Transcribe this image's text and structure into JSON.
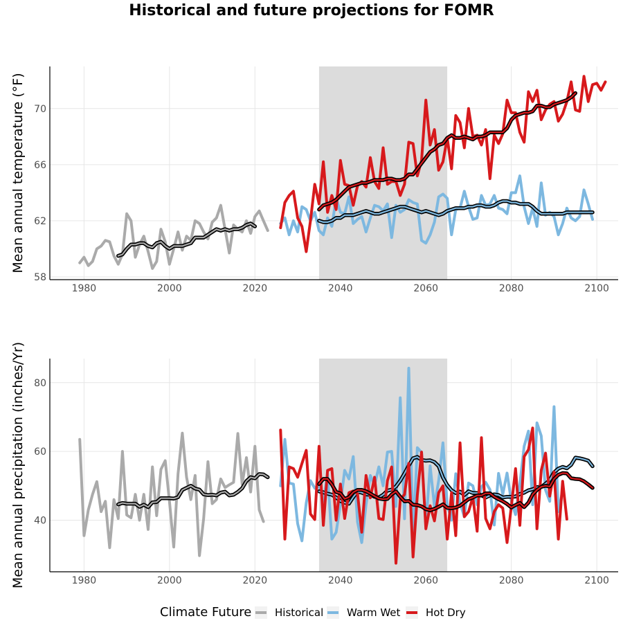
{
  "chart_data": {
    "title": "Historical and future projections for FOMR",
    "type": "line",
    "legend": {
      "title": "Climate Future",
      "position": "bottom",
      "entries": [
        {
          "name": "Historical",
          "color": "#aaaaaa"
        },
        {
          "name": "Warm Wet",
          "color": "#7db8e0"
        },
        {
          "name": "Hot Dry",
          "color": "#d7191c"
        }
      ]
    },
    "shaded_period": [
      2035,
      2065
    ],
    "grid": true,
    "panels": [
      {
        "ylabel": "Mean annual temperature (°F)",
        "xlim": [
          1972,
          2105
        ],
        "ylim": [
          57.8,
          73
        ],
        "xticks": [
          1980,
          2000,
          2020,
          2040,
          2060,
          2080,
          2100
        ],
        "yticks": [
          58,
          62,
          66,
          70
        ],
        "series": [
          {
            "name": "Historical",
            "color": "#aaaaaa",
            "x_start": 1979,
            "values": [
              59.0,
              59.4,
              58.8,
              59.1,
              60.0,
              60.2,
              60.6,
              60.5,
              59.5,
              58.9,
              59.6,
              62.5,
              62.0,
              59.4,
              60.3,
              60.9,
              59.8,
              58.6,
              59.1,
              61.4,
              60.5,
              58.9,
              60.0,
              61.2,
              59.9,
              60.9,
              60.6,
              62.0,
              61.8,
              61.2,
              60.7,
              61.9,
              62.2,
              63.1,
              61.4,
              59.7,
              61.7,
              61.4,
              61.2,
              62.0,
              61.1,
              62.3,
              62.7,
              62.0,
              61.3
            ]
          },
          {
            "name": "Historical MA",
            "color": "#000000",
            "smooth": true,
            "x_start": 1988,
            "values": [
              59.5,
              59.6,
              60.0,
              60.3,
              60.3,
              60.4,
              60.4,
              60.2,
              60.1,
              60.4,
              60.5,
              60.2,
              60.0,
              60.2,
              60.2,
              60.2,
              60.3,
              60.4,
              60.8,
              60.8,
              60.8,
              61.0,
              61.2,
              61.4,
              61.3,
              61.4,
              61.3,
              61.4,
              61.4,
              61.5,
              61.7,
              61.8,
              61.6
            ]
          },
          {
            "name": "Warm Wet",
            "color": "#7db8e0",
            "x_start": 2026,
            "values": [
              61.8,
              62.2,
              61.0,
              62.0,
              61.2,
              63.0,
              62.8,
              62.0,
              62.6,
              61.3,
              61.0,
              62.2,
              61.6,
              63.6,
              62.6,
              62.5,
              63.7,
              61.8,
              62.1,
              62.3,
              61.2,
              62.2,
              63.1,
              63.0,
              62.7,
              63.2,
              60.8,
              63.1,
              62.6,
              62.8,
              63.5,
              63.3,
              63.2,
              60.6,
              60.4,
              61.0,
              61.9,
              63.7,
              63.9,
              63.6,
              61.0,
              62.8,
              62.9,
              64.1,
              63.0,
              62.1,
              62.2,
              63.8,
              63.1,
              63.2,
              63.8,
              62.9,
              62.8,
              62.5,
              64.0,
              64.0,
              65.2,
              63.0,
              61.8,
              62.9,
              61.6,
              64.7,
              62.4,
              62.6,
              62.3,
              61.0,
              61.8,
              62.9,
              62.2,
              62.0,
              62.3,
              64.2,
              63.2,
              62.1
            ]
          },
          {
            "name": "Warm Wet MA",
            "color": "#000000",
            "smooth": true,
            "x_start": 2035,
            "values": [
              62.0,
              61.9,
              61.9,
              62.0,
              62.2,
              62.2,
              62.4,
              62.4,
              62.4,
              62.5,
              62.6,
              62.7,
              62.6,
              62.5,
              62.5,
              62.6,
              62.7,
              62.8,
              62.9,
              63.0,
              63.0,
              62.9,
              62.8,
              62.7,
              62.6,
              62.7,
              62.6,
              62.5,
              62.4,
              62.5,
              62.7,
              62.8,
              62.9,
              62.9,
              62.9,
              63.0,
              63.0,
              63.1,
              63.1,
              63.0,
              63.0,
              63.1,
              63.3,
              63.4,
              63.4,
              63.3,
              63.3,
              63.2,
              63.2,
              63.2,
              63.0,
              62.7,
              62.5,
              62.5,
              62.5,
              62.5,
              62.5,
              62.5,
              62.6,
              62.6,
              62.6,
              62.6,
              62.6,
              62.6,
              62.6
            ]
          },
          {
            "name": "Hot Dry",
            "color": "#d7191c",
            "x_start": 2026,
            "values": [
              61.5,
              63.3,
              63.8,
              64.1,
              62.2,
              61.6,
              59.8,
              62.0,
              64.6,
              63.2,
              66.2,
              62.6,
              63.8,
              62.8,
              66.3,
              64.6,
              64.5,
              63.1,
              64.5,
              64.8,
              64.4,
              66.5,
              64.8,
              64.3,
              67.2,
              64.6,
              64.8,
              64.8,
              63.8,
              64.6,
              67.6,
              67.5,
              65.2,
              66.3,
              70.6,
              67.4,
              68.5,
              65.6,
              66.2,
              67.9,
              65.7,
              69.5,
              69.0,
              67.2,
              70.0,
              68.0,
              68.1,
              67.4,
              68.5,
              65.0,
              68.1,
              67.5,
              68.2,
              70.6,
              69.7,
              69.7,
              68.3,
              67.6,
              71.2,
              70.5,
              71.3,
              69.2,
              69.9,
              70.3,
              70.5,
              69.1,
              69.6,
              70.5,
              71.9,
              69.9,
              69.8,
              72.3,
              70.5,
              71.7,
              71.8,
              71.3,
              71.9
            ]
          },
          {
            "name": "Hot Dry MA",
            "color": "#000000",
            "smooth": true,
            "x_start": 2035,
            "values": [
              62.8,
              63.1,
              63.2,
              63.3,
              63.5,
              63.8,
              64.1,
              64.4,
              64.5,
              64.6,
              64.7,
              64.7,
              64.8,
              64.9,
              64.9,
              64.9,
              65.0,
              65.0,
              64.9,
              64.9,
              65.0,
              65.3,
              65.3,
              65.7,
              66.1,
              66.5,
              66.9,
              67.1,
              67.4,
              67.5,
              67.9,
              68.1,
              67.9,
              67.9,
              68.0,
              67.9,
              67.8,
              68.0,
              68.0,
              68.1,
              68.3,
              68.3,
              68.3,
              68.3,
              68.6,
              69.2,
              69.5,
              69.6,
              69.7,
              69.7,
              69.8,
              70.2,
              70.2,
              70.1,
              70.1,
              70.3,
              70.4,
              70.5,
              70.6,
              70.8,
              71.1
            ]
          }
        ]
      },
      {
        "ylabel": "Mean annual precipitation (inches/Yr)",
        "xlim": [
          1972,
          2105
        ],
        "ylim": [
          25,
          87
        ],
        "xticks": [
          1980,
          2000,
          2020,
          2040,
          2060,
          2080,
          2100
        ],
        "yticks": [
          40,
          60,
          80
        ],
        "series": [
          {
            "name": "Historical",
            "color": "#aaaaaa",
            "x_start": 1979,
            "values": [
              63.5,
              35.5,
              43.0,
              47.5,
              51.2,
              42.5,
              45.5,
              32.0,
              46.0,
              40.5,
              60.0,
              41.5,
              40.7,
              47.5,
              40.0,
              47.5,
              37.3,
              55.5,
              41.3,
              54.8,
              57.3,
              45.5,
              32.2,
              53.5,
              65.3,
              52.5,
              46.0,
              53.0,
              29.7,
              40.5,
              57.0,
              44.8,
              46.0,
              52.0,
              49.5,
              50.3,
              51.0,
              65.2,
              50.5,
              58.2,
              48.2,
              61.5,
              43.0,
              39.6
            ]
          },
          {
            "name": "Historical MA",
            "color": "#000000",
            "smooth": true,
            "x_start": 1988,
            "values": [
              44.6,
              45.0,
              44.8,
              44.8,
              44.8,
              43.9,
              44.5,
              43.8,
              45.2,
              45.3,
              46.4,
              46.4,
              46.4,
              46.3,
              46.7,
              48.8,
              49.4,
              50.0,
              49.2,
              48.9,
              47.5,
              47.3,
              47.4,
              47.2,
              48.0,
              48.3,
              47.2,
              47.4,
              48.2,
              49.3,
              51.4,
              52.5,
              52.2,
              53.4,
              53.3,
              52.5
            ]
          },
          {
            "name": "Warm Wet",
            "color": "#7db8e0",
            "x_start": 2026,
            "values": [
              50.0,
              63.5,
              50.8,
              50.5,
              39.0,
              34.0,
              45.0,
              51.5,
              49.3,
              50.0,
              45.5,
              53.3,
              34.5,
              36.5,
              44.7,
              54.5,
              52.0,
              58.5,
              39.5,
              33.5,
              44.5,
              53.0,
              50.2,
              55.5,
              50.0,
              59.8,
              60.0,
              44.0,
              75.6,
              40.4,
              84.2,
              35.5,
              61.1,
              59.7,
              38.5,
              55.8,
              44.0,
              51.5,
              62.5,
              44.5,
              40.0,
              53.5,
              45.0,
              41.0,
              50.8,
              50.0,
              44.5,
              49.7,
              51.0,
              48.9,
              38.6,
              53.6,
              47.5,
              53.7,
              45.5,
              41.6,
              50.5,
              61.5,
              65.9,
              44.5,
              68.3,
              64.5,
              48.8,
              45.5,
              73.0,
              42.5,
              48.7
            ]
          },
          {
            "name": "Warm Wet MA",
            "color": "#000000",
            "smooth": true,
            "x_start": 2035,
            "values": [
              48.4,
              48.1,
              47.7,
              47.4,
              46.6,
              45.6,
              45.1,
              44.8,
              46.7,
              48.3,
              48.0,
              47.5,
              47.4,
              46.8,
              46.6,
              47.4,
              48.6,
              48.9,
              49.8,
              51.5,
              53.6,
              55.9,
              58.0,
              58.4,
              57.5,
              57.3,
              57.4,
              56.9,
              55.7,
              52.4,
              50.2,
              48.7,
              47.9,
              48.3,
              47.3,
              48.4,
              47.9,
              47.9,
              47.2,
              46.6,
              47.2,
              47.5,
              47.3,
              46.6,
              46.8,
              46.8,
              46.9,
              47.6,
              48.0,
              48.7,
              49.0,
              49.6,
              49.7,
              50.6,
              51.7,
              53.9,
              55.0,
              55.5,
              55.1,
              56.1,
              58.2,
              58.0,
              57.7,
              57.3,
              55.7
            ]
          },
          {
            "name": "Hot Dry",
            "color": "#d7191c",
            "x_start": 2026,
            "values": [
              66.2,
              34.5,
              55.5,
              55.0,
              52.5,
              56.5,
              60.3,
              41.8,
              40.2,
              61.5,
              38.5,
              54.5,
              55.0,
              40.0,
              50.5,
              40.5,
              48.0,
              48.5,
              47.7,
              36.5,
              53.0,
              46.5,
              52.5,
              40.5,
              40.2,
              51.5,
              55.5,
              27.5,
              46.0,
              47.5,
              56.5,
              29.3,
              47.3,
              59.8,
              37.5,
              44.2,
              39.8,
              48.0,
              50.0,
              34.5,
              48.0,
              35.5,
              62.5,
              41.0,
              42.5,
              46.7,
              36.8,
              64.0,
              40.5,
              37.5,
              42.5,
              44.5,
              43.5,
              33.5,
              44.0,
              55.0,
              38.5,
              58.5,
              60.5,
              66.8,
              37.5,
              54.5,
              59.5,
              47.0,
              54.0,
              34.5,
              51.3,
              40.3
            ]
          },
          {
            "name": "Hot Dry MA",
            "color": "#000000",
            "smooth": true,
            "x_start": 2035,
            "values": [
              50.5,
              52.0,
              52.0,
              50.4,
              48.2,
              47.8,
              46.2,
              46.7,
              48.1,
              48.8,
              48.8,
              48.4,
              47.7,
              47.0,
              46.3,
              46.1,
              46.2,
              47.5,
              48.4,
              46.8,
              45.5,
              45.6,
              44.5,
              44.4,
              44.0,
              43.2,
              42.9,
              43.3,
              43.9,
              44.6,
              43.6,
              43.5,
              43.7,
              44.2,
              45.2,
              46.1,
              46.6,
              47.2,
              47.2,
              47.8,
              47.8,
              46.8,
              46.1,
              45.5,
              44.7,
              43.7,
              44.4,
              45.0,
              43.8,
              45.1,
              47.5,
              48.8,
              49.7,
              50.0,
              49.8,
              52.0,
              53.2,
              53.7,
              53.6,
              52.2,
              52.0,
              51.9,
              51.3,
              50.4,
              49.4
            ]
          }
        ]
      }
    ]
  }
}
